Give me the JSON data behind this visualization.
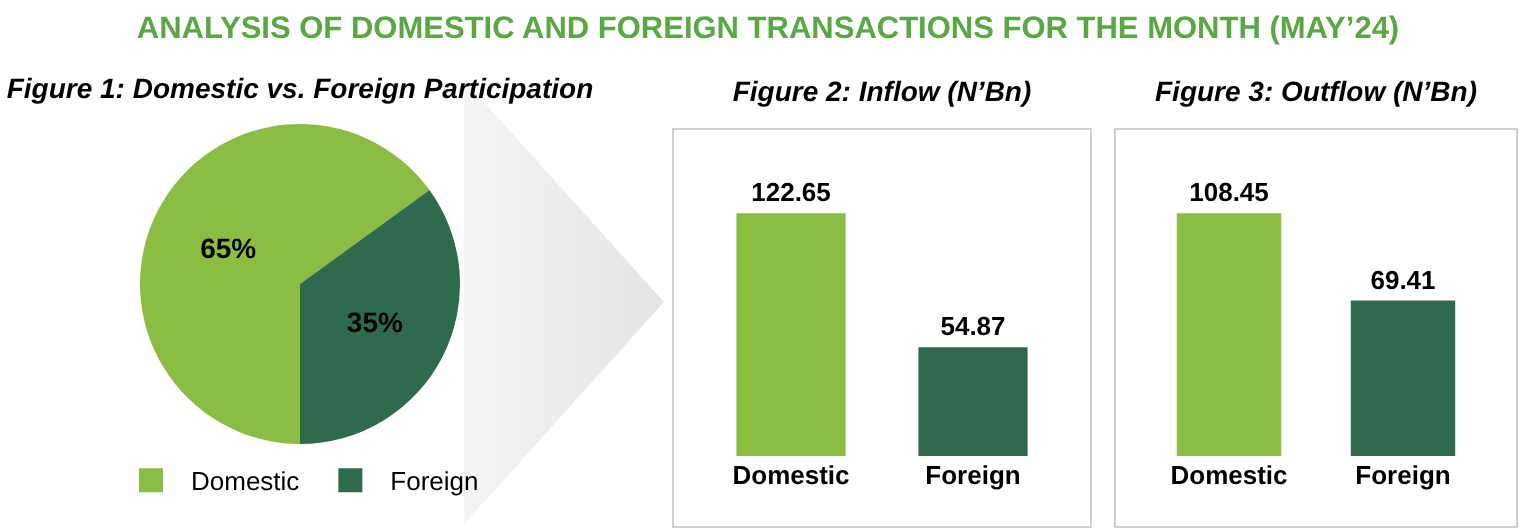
{
  "chart_data": [
    {
      "type": "other",
      "title": "ANALYSIS OF DOMESTIC AND FOREIGN TRANSACTIONS FOR THE MONTH (MAY’24)"
    },
    {
      "type": "pie",
      "title": "Figure 1: Domestic vs. Foreign Participation",
      "categories": [
        "Domestic",
        "Foreign"
      ],
      "values": [
        65,
        35
      ],
      "value_labels": [
        "65%",
        "35%"
      ],
      "colors": [
        "#8bbd45",
        "#2e6b4d"
      ],
      "legend": "bottom"
    },
    {
      "type": "bar",
      "title": "Figure 2: Inflow (N’Bn)",
      "categories": [
        "Domestic",
        "Foreign"
      ],
      "values": [
        122.65,
        54.87
      ],
      "colors": [
        "#8bbd45",
        "#2e6b4d"
      ],
      "data_labels": true
    },
    {
      "type": "bar",
      "title": "Figure 3: Outflow (N’Bn)",
      "categories": [
        "Domestic",
        "Foreign"
      ],
      "values": [
        108.45,
        69.41
      ],
      "colors": [
        "#8bbd45",
        "#2e6b4d"
      ],
      "data_labels": true
    }
  ]
}
